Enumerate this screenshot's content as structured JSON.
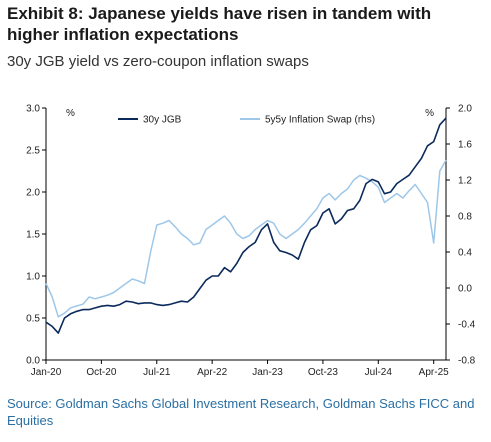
{
  "header": {
    "title": "Exhibit 8: Japanese yields have risen in tandem with higher inflation expectations",
    "subtitle": "30y JGB yield vs zero-coupon inflation swaps"
  },
  "footer": {
    "source": "Source: Goldman Sachs Global Investment Research, Goldman Sachs FICC and Equities"
  },
  "colors": {
    "jgb": "#0b2a5b",
    "swap": "#9ec7e8"
  },
  "chart_data": {
    "type": "line",
    "left_axis_unit": "%",
    "right_axis_unit": "%",
    "ylim_left": [
      0.0,
      3.0
    ],
    "ylim_right": [
      -0.8,
      2.0
    ],
    "yticks_left": [
      "0.0",
      "0.5",
      "1.0",
      "1.5",
      "2.0",
      "2.5",
      "3.0"
    ],
    "yticks_right": [
      "-0.8",
      "-0.4",
      "0.0",
      "0.4",
      "0.8",
      "1.2",
      "1.6",
      "2.0"
    ],
    "xlim": [
      "2020-01",
      "2025-06"
    ],
    "x_ticks": [
      {
        "label": "Jan-20",
        "date": "2020-01"
      },
      {
        "label": "Oct-20",
        "date": "2020-10"
      },
      {
        "label": "Jul-21",
        "date": "2021-07"
      },
      {
        "label": "Apr-22",
        "date": "2022-04"
      },
      {
        "label": "Jan-23",
        "date": "2023-01"
      },
      {
        "label": "Oct-23",
        "date": "2023-10"
      },
      {
        "label": "Jul-24",
        "date": "2024-07"
      },
      {
        "label": "Apr-25",
        "date": "2025-04"
      }
    ],
    "grid": false,
    "legend_position": "top",
    "series": [
      {
        "name": "30y JGB",
        "axis": "left",
        "points": [
          [
            "2020-01",
            0.45
          ],
          [
            "2020-02",
            0.4
          ],
          [
            "2020-03",
            0.32
          ],
          [
            "2020-04",
            0.5
          ],
          [
            "2020-05",
            0.55
          ],
          [
            "2020-06",
            0.58
          ],
          [
            "2020-07",
            0.6
          ],
          [
            "2020-08",
            0.6
          ],
          [
            "2020-09",
            0.62
          ],
          [
            "2020-10",
            0.64
          ],
          [
            "2020-11",
            0.65
          ],
          [
            "2020-12",
            0.64
          ],
          [
            "2021-01",
            0.66
          ],
          [
            "2021-02",
            0.7
          ],
          [
            "2021-03",
            0.69
          ],
          [
            "2021-04",
            0.67
          ],
          [
            "2021-05",
            0.68
          ],
          [
            "2021-06",
            0.68
          ],
          [
            "2021-07",
            0.66
          ],
          [
            "2021-08",
            0.65
          ],
          [
            "2021-09",
            0.66
          ],
          [
            "2021-10",
            0.68
          ],
          [
            "2021-11",
            0.7
          ],
          [
            "2021-12",
            0.69
          ],
          [
            "2022-01",
            0.75
          ],
          [
            "2022-02",
            0.85
          ],
          [
            "2022-03",
            0.95
          ],
          [
            "2022-04",
            1.0
          ],
          [
            "2022-05",
            1.0
          ],
          [
            "2022-06",
            1.1
          ],
          [
            "2022-07",
            1.05
          ],
          [
            "2022-08",
            1.15
          ],
          [
            "2022-09",
            1.28
          ],
          [
            "2022-10",
            1.35
          ],
          [
            "2022-11",
            1.4
          ],
          [
            "2022-12",
            1.55
          ],
          [
            "2023-01",
            1.62
          ],
          [
            "2023-02",
            1.4
          ],
          [
            "2023-03",
            1.3
          ],
          [
            "2023-04",
            1.28
          ],
          [
            "2023-05",
            1.25
          ],
          [
            "2023-06",
            1.2
          ],
          [
            "2023-07",
            1.4
          ],
          [
            "2023-08",
            1.55
          ],
          [
            "2023-09",
            1.6
          ],
          [
            "2023-10",
            1.75
          ],
          [
            "2023-11",
            1.8
          ],
          [
            "2023-12",
            1.62
          ],
          [
            "2024-01",
            1.68
          ],
          [
            "2024-02",
            1.78
          ],
          [
            "2024-03",
            1.8
          ],
          [
            "2024-04",
            1.9
          ],
          [
            "2024-05",
            2.1
          ],
          [
            "2024-06",
            2.15
          ],
          [
            "2024-07",
            2.12
          ],
          [
            "2024-08",
            1.98
          ],
          [
            "2024-09",
            2.0
          ],
          [
            "2024-10",
            2.1
          ],
          [
            "2024-11",
            2.15
          ],
          [
            "2024-12",
            2.2
          ],
          [
            "2025-01",
            2.3
          ],
          [
            "2025-02",
            2.4
          ],
          [
            "2025-03",
            2.55
          ],
          [
            "2025-04",
            2.6
          ],
          [
            "2025-05",
            2.8
          ],
          [
            "2025-06",
            2.88
          ]
        ]
      },
      {
        "name": "5y5y Inflation Swap (rhs)",
        "axis": "right",
        "points": [
          [
            "2020-01",
            0.05
          ],
          [
            "2020-02",
            -0.1
          ],
          [
            "2020-03",
            -0.32
          ],
          [
            "2020-04",
            -0.28
          ],
          [
            "2020-05",
            -0.22
          ],
          [
            "2020-06",
            -0.2
          ],
          [
            "2020-07",
            -0.18
          ],
          [
            "2020-08",
            -0.1
          ],
          [
            "2020-09",
            -0.12
          ],
          [
            "2020-10",
            -0.1
          ],
          [
            "2020-11",
            -0.08
          ],
          [
            "2020-12",
            -0.05
          ],
          [
            "2021-01",
            0.0
          ],
          [
            "2021-02",
            0.05
          ],
          [
            "2021-03",
            0.1
          ],
          [
            "2021-04",
            0.08
          ],
          [
            "2021-05",
            0.05
          ],
          [
            "2021-06",
            0.4
          ],
          [
            "2021-07",
            0.7
          ],
          [
            "2021-08",
            0.72
          ],
          [
            "2021-09",
            0.75
          ],
          [
            "2021-10",
            0.68
          ],
          [
            "2021-11",
            0.6
          ],
          [
            "2021-12",
            0.55
          ],
          [
            "2022-01",
            0.48
          ],
          [
            "2022-02",
            0.5
          ],
          [
            "2022-03",
            0.65
          ],
          [
            "2022-04",
            0.7
          ],
          [
            "2022-05",
            0.75
          ],
          [
            "2022-06",
            0.8
          ],
          [
            "2022-07",
            0.72
          ],
          [
            "2022-08",
            0.6
          ],
          [
            "2022-09",
            0.55
          ],
          [
            "2022-10",
            0.58
          ],
          [
            "2022-11",
            0.65
          ],
          [
            "2022-12",
            0.7
          ],
          [
            "2023-01",
            0.75
          ],
          [
            "2023-02",
            0.72
          ],
          [
            "2023-03",
            0.6
          ],
          [
            "2023-04",
            0.55
          ],
          [
            "2023-05",
            0.6
          ],
          [
            "2023-06",
            0.65
          ],
          [
            "2023-07",
            0.72
          ],
          [
            "2023-08",
            0.8
          ],
          [
            "2023-09",
            0.88
          ],
          [
            "2023-10",
            1.0
          ],
          [
            "2023-11",
            1.05
          ],
          [
            "2023-12",
            0.98
          ],
          [
            "2024-01",
            1.05
          ],
          [
            "2024-02",
            1.1
          ],
          [
            "2024-03",
            1.2
          ],
          [
            "2024-04",
            1.25
          ],
          [
            "2024-05",
            1.22
          ],
          [
            "2024-06",
            1.18
          ],
          [
            "2024-07",
            1.12
          ],
          [
            "2024-08",
            0.95
          ],
          [
            "2024-09",
            1.0
          ],
          [
            "2024-10",
            1.05
          ],
          [
            "2024-11",
            1.0
          ],
          [
            "2024-12",
            1.08
          ],
          [
            "2025-01",
            1.15
          ],
          [
            "2025-02",
            1.05
          ],
          [
            "2025-03",
            0.95
          ],
          [
            "2025-04",
            0.5
          ],
          [
            "2025-05",
            1.3
          ],
          [
            "2025-06",
            1.42
          ]
        ]
      }
    ]
  }
}
